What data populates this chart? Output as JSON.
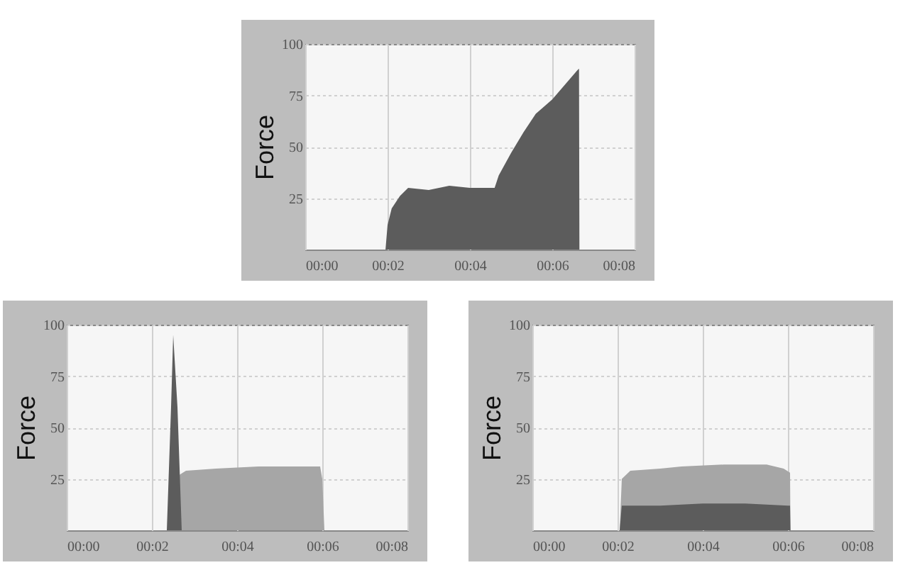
{
  "chart_data": [
    {
      "type": "area",
      "ylabel": "Force",
      "xlim": [
        0,
        8
      ],
      "ylim": [
        0,
        100
      ],
      "grid": true,
      "xticks": [
        {
          "value": 0,
          "label": "00:00"
        },
        {
          "value": 2,
          "label": "00:02"
        },
        {
          "value": 4,
          "label": "00:04"
        },
        {
          "value": 6,
          "label": "00:06"
        },
        {
          "value": 8,
          "label": "00:08"
        }
      ],
      "yticks": [
        25,
        50,
        75,
        100
      ],
      "series": [
        {
          "color": "#5c5c5c",
          "x": [
            1.95,
            2.0,
            2.1,
            2.3,
            2.5,
            3.0,
            3.5,
            4.0,
            4.6,
            4.7,
            5.0,
            5.3,
            5.6,
            6.0,
            6.3,
            6.6,
            6.65,
            6.66
          ],
          "values": [
            0,
            12,
            20,
            26,
            30,
            29,
            31,
            30,
            30,
            36,
            47,
            57,
            66,
            73,
            80,
            87,
            88,
            0
          ]
        }
      ]
    },
    {
      "type": "area",
      "ylabel": "Force",
      "xlim": [
        0,
        8
      ],
      "ylim": [
        0,
        100
      ],
      "grid": true,
      "xticks": [
        {
          "value": 0,
          "label": "00:00"
        },
        {
          "value": 2,
          "label": "00:02"
        },
        {
          "value": 4,
          "label": "00:04"
        },
        {
          "value": 6,
          "label": "00:06"
        },
        {
          "value": 8,
          "label": "00:08"
        }
      ],
      "yticks": [
        25,
        50,
        75,
        100
      ],
      "series": [
        {
          "color": "#a6a6a6",
          "x": [
            2.6,
            2.65,
            2.8,
            3.5,
            4.5,
            5.5,
            5.95,
            6.0,
            6.05
          ],
          "values": [
            0,
            27,
            29,
            30,
            31,
            31,
            31,
            25,
            0
          ]
        },
        {
          "color": "#5c5c5c",
          "x": [
            2.35,
            2.45,
            2.5,
            2.6,
            2.7
          ],
          "values": [
            0,
            60,
            95,
            60,
            0
          ]
        }
      ]
    },
    {
      "type": "area",
      "ylabel": "Force",
      "xlim": [
        0,
        8
      ],
      "ylim": [
        0,
        100
      ],
      "grid": true,
      "xticks": [
        {
          "value": 0,
          "label": "00:00"
        },
        {
          "value": 2,
          "label": "00:02"
        },
        {
          "value": 4,
          "label": "00:04"
        },
        {
          "value": 6,
          "label": "00:06"
        },
        {
          "value": 8,
          "label": "00:08"
        }
      ],
      "yticks": [
        25,
        50,
        75,
        100
      ],
      "series": [
        {
          "color": "#a6a6a6",
          "x": [
            2.05,
            2.1,
            2.3,
            3.0,
            3.5,
            4.5,
            5.5,
            5.9,
            6.05,
            6.06
          ],
          "values": [
            0,
            25,
            29,
            30,
            31,
            32,
            32,
            30,
            28,
            0
          ]
        },
        {
          "color": "#5c5c5c",
          "x": [
            2.05,
            2.1,
            3.0,
            4.0,
            5.0,
            6.0,
            6.05,
            6.06
          ],
          "values": [
            0,
            12,
            12,
            13,
            13,
            12,
            12,
            0
          ]
        }
      ]
    }
  ]
}
